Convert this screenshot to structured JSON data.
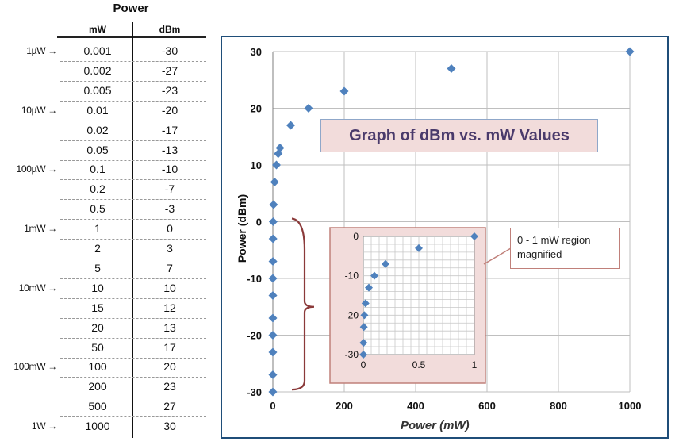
{
  "table": {
    "title": "Power",
    "col_mw": "mW",
    "col_dbm": "dBm",
    "rows": [
      {
        "label": "1µW →",
        "mw": "0.001",
        "dbm": "-30"
      },
      {
        "label": "",
        "mw": "0.002",
        "dbm": "-27"
      },
      {
        "label": "",
        "mw": "0.005",
        "dbm": "-23"
      },
      {
        "label": "10µW →",
        "mw": "0.01",
        "dbm": "-20"
      },
      {
        "label": "",
        "mw": "0.02",
        "dbm": "-17"
      },
      {
        "label": "",
        "mw": "0.05",
        "dbm": "-13"
      },
      {
        "label": "100µW →",
        "mw": "0.1",
        "dbm": "-10"
      },
      {
        "label": "",
        "mw": "0.2",
        "dbm": "-7"
      },
      {
        "label": "",
        "mw": "0.5",
        "dbm": "-3"
      },
      {
        "label": "1mW →",
        "mw": "1",
        "dbm": "0"
      },
      {
        "label": "",
        "mw": "2",
        "dbm": "3"
      },
      {
        "label": "",
        "mw": "5",
        "dbm": "7"
      },
      {
        "label": "10mW →",
        "mw": "10",
        "dbm": "10"
      },
      {
        "label": "",
        "mw": "15",
        "dbm": "12"
      },
      {
        "label": "",
        "mw": "20",
        "dbm": "13"
      },
      {
        "label": "",
        "mw": "50",
        "dbm": "17"
      },
      {
        "label": "100mW →",
        "mw": "100",
        "dbm": "20"
      },
      {
        "label": "",
        "mw": "200",
        "dbm": "23"
      },
      {
        "label": "",
        "mw": "500",
        "dbm": "27"
      },
      {
        "label": "1W →",
        "mw": "1000",
        "dbm": "30"
      }
    ]
  },
  "chart_data": [
    {
      "type": "scatter",
      "title": "Graph of dBm vs. mW Values",
      "xlabel": "Power (mW)",
      "ylabel": "Power (dBm)",
      "xlim": [
        0,
        1000
      ],
      "ylim": [
        -30,
        30
      ],
      "xticks": [
        0,
        200,
        400,
        600,
        800,
        1000
      ],
      "yticks": [
        -30,
        -20,
        -10,
        0,
        10,
        20,
        30
      ],
      "grid": true,
      "series": [
        {
          "name": "dBm",
          "color": "#4f81bd",
          "x": [
            0.001,
            0.002,
            0.005,
            0.01,
            0.02,
            0.05,
            0.1,
            0.2,
            0.5,
            1,
            2,
            5,
            10,
            15,
            20,
            50,
            100,
            200,
            500,
            1000
          ],
          "y": [
            -30,
            -27,
            -23,
            -20,
            -17,
            -13,
            -10,
            -7,
            -3,
            0,
            3,
            7,
            10,
            12,
            13,
            17,
            20,
            23,
            27,
            30
          ]
        }
      ]
    },
    {
      "type": "scatter",
      "title": "0 - 1 mW region magnified",
      "xlim": [
        0,
        1
      ],
      "ylim": [
        -30,
        0
      ],
      "xticks": [
        0,
        0.5,
        1
      ],
      "yticks": [
        -30,
        -20,
        -10,
        0
      ],
      "grid": true,
      "background": "#f2dcdb",
      "series": [
        {
          "name": "dBm",
          "color": "#4f81bd",
          "x": [
            0.001,
            0.002,
            0.005,
            0.01,
            0.02,
            0.05,
            0.1,
            0.2,
            0.5,
            1
          ],
          "y": [
            -30,
            -27,
            -23,
            -20,
            -17,
            -13,
            -10,
            -7,
            -3,
            0
          ]
        }
      ]
    }
  ],
  "annotations": {
    "title_box": "Graph of dBm vs. mW Values",
    "inset_note": "0 - 1 mW region magnified"
  },
  "colors": {
    "marker": "#4f81bd",
    "frame": "#1f4e79",
    "inset_bg": "#f2dcdb",
    "bracket": "#8b3a3a"
  }
}
